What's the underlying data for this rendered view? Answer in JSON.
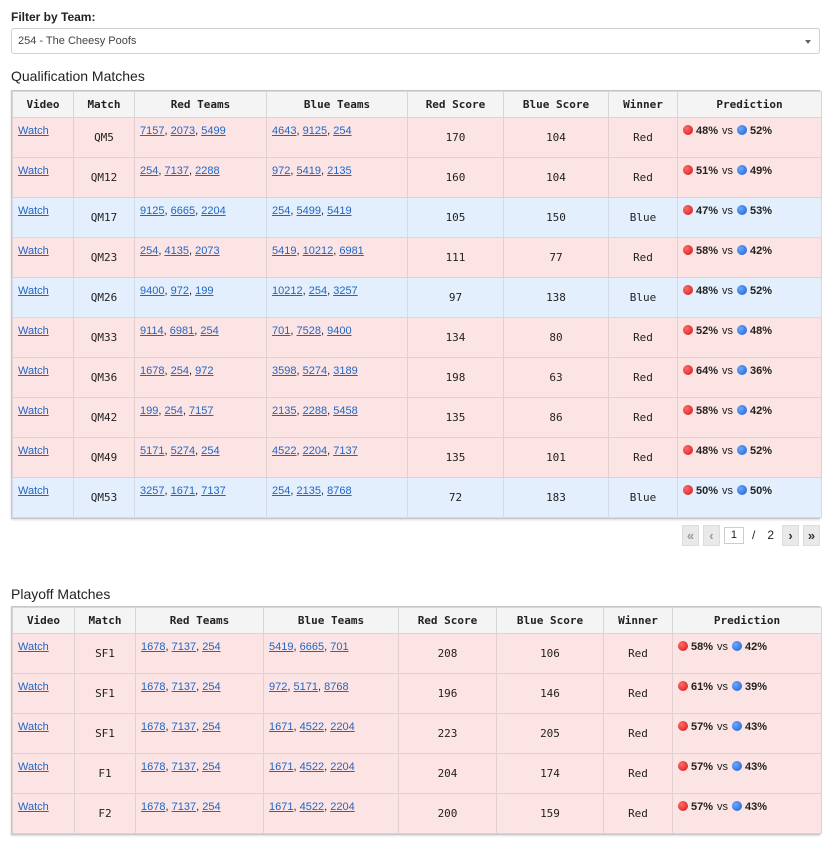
{
  "filter": {
    "label": "Filter by Team:",
    "value": "254 - The Cheesy Poofs"
  },
  "qual": {
    "title": "Qualification Matches",
    "headers": [
      "Video",
      "Match",
      "Red Teams",
      "Blue Teams",
      "Red Score",
      "Blue Score",
      "Winner",
      "Prediction"
    ],
    "rows": [
      {
        "video": "Watch",
        "match": "QM5",
        "red": [
          "7157",
          "2073",
          "5499"
        ],
        "blue": [
          "4643",
          "9125",
          "254"
        ],
        "red_score": "170",
        "blue_score": "104",
        "winner": "Red",
        "red_pct": "48%",
        "blue_pct": "52%"
      },
      {
        "video": "Watch",
        "match": "QM12",
        "red": [
          "254",
          "7137",
          "2288"
        ],
        "blue": [
          "972",
          "5419",
          "2135"
        ],
        "red_score": "160",
        "blue_score": "104",
        "winner": "Red",
        "red_pct": "51%",
        "blue_pct": "49%"
      },
      {
        "video": "Watch",
        "match": "QM17",
        "red": [
          "9125",
          "6665",
          "2204"
        ],
        "blue": [
          "254",
          "5499",
          "5419"
        ],
        "red_score": "105",
        "blue_score": "150",
        "winner": "Blue",
        "red_pct": "47%",
        "blue_pct": "53%"
      },
      {
        "video": "Watch",
        "match": "QM23",
        "red": [
          "254",
          "4135",
          "2073"
        ],
        "blue": [
          "5419",
          "10212",
          "6981"
        ],
        "red_score": "111",
        "blue_score": "77",
        "winner": "Red",
        "red_pct": "58%",
        "blue_pct": "42%"
      },
      {
        "video": "Watch",
        "match": "QM26",
        "red": [
          "9400",
          "972",
          "199"
        ],
        "blue": [
          "10212",
          "254",
          "3257"
        ],
        "red_score": "97",
        "blue_score": "138",
        "winner": "Blue",
        "red_pct": "48%",
        "blue_pct": "52%"
      },
      {
        "video": "Watch",
        "match": "QM33",
        "red": [
          "9114",
          "6981",
          "254"
        ],
        "blue": [
          "701",
          "7528",
          "9400"
        ],
        "red_score": "134",
        "blue_score": "80",
        "winner": "Red",
        "red_pct": "52%",
        "blue_pct": "48%"
      },
      {
        "video": "Watch",
        "match": "QM36",
        "red": [
          "1678",
          "254",
          "972"
        ],
        "blue": [
          "3598",
          "5274",
          "3189"
        ],
        "red_score": "198",
        "blue_score": "63",
        "winner": "Red",
        "red_pct": "64%",
        "blue_pct": "36%"
      },
      {
        "video": "Watch",
        "match": "QM42",
        "red": [
          "199",
          "254",
          "7157"
        ],
        "blue": [
          "2135",
          "2288",
          "5458"
        ],
        "red_score": "135",
        "blue_score": "86",
        "winner": "Red",
        "red_pct": "58%",
        "blue_pct": "42%"
      },
      {
        "video": "Watch",
        "match": "QM49",
        "red": [
          "5171",
          "5274",
          "254"
        ],
        "blue": [
          "4522",
          "2204",
          "7137"
        ],
        "red_score": "135",
        "blue_score": "101",
        "winner": "Red",
        "red_pct": "48%",
        "blue_pct": "52%"
      },
      {
        "video": "Watch",
        "match": "QM53",
        "red": [
          "3257",
          "1671",
          "7137"
        ],
        "blue": [
          "254",
          "2135",
          "8768"
        ],
        "red_score": "72",
        "blue_score": "183",
        "winner": "Blue",
        "red_pct": "50%",
        "blue_pct": "50%"
      }
    ],
    "pager": {
      "first": "«",
      "prev": "‹",
      "page": "1",
      "sep": "/",
      "total": "2",
      "next": "›",
      "last": "»"
    }
  },
  "playoff": {
    "title": "Playoff Matches",
    "headers": [
      "Video",
      "Match",
      "Red Teams",
      "Blue Teams",
      "Red Score",
      "Blue Score",
      "Winner",
      "Prediction"
    ],
    "rows": [
      {
        "video": "Watch",
        "match": "SF1",
        "red": [
          "1678",
          "7137",
          "254"
        ],
        "blue": [
          "5419",
          "6665",
          "701"
        ],
        "red_score": "208",
        "blue_score": "106",
        "winner": "Red",
        "red_pct": "58%",
        "blue_pct": "42%"
      },
      {
        "video": "Watch",
        "match": "SF1",
        "red": [
          "1678",
          "7137",
          "254"
        ],
        "blue": [
          "972",
          "5171",
          "8768"
        ],
        "red_score": "196",
        "blue_score": "146",
        "winner": "Red",
        "red_pct": "61%",
        "blue_pct": "39%"
      },
      {
        "video": "Watch",
        "match": "SF1",
        "red": [
          "1678",
          "7137",
          "254"
        ],
        "blue": [
          "1671",
          "4522",
          "2204"
        ],
        "red_score": "223",
        "blue_score": "205",
        "winner": "Red",
        "red_pct": "57%",
        "blue_pct": "43%"
      },
      {
        "video": "Watch",
        "match": "F1",
        "red": [
          "1678",
          "7137",
          "254"
        ],
        "blue": [
          "1671",
          "4522",
          "2204"
        ],
        "red_score": "204",
        "blue_score": "174",
        "winner": "Red",
        "red_pct": "57%",
        "blue_pct": "43%"
      },
      {
        "video": "Watch",
        "match": "F2",
        "red": [
          "1678",
          "7137",
          "254"
        ],
        "blue": [
          "1671",
          "4522",
          "2204"
        ],
        "red_score": "200",
        "blue_score": "159",
        "winner": "Red",
        "red_pct": "57%",
        "blue_pct": "43%"
      }
    ]
  },
  "prediction_vs": "vs",
  "colors": {
    "red_row": "#fde4e4",
    "blue_row": "#e4effd",
    "link": "#2066c4"
  }
}
